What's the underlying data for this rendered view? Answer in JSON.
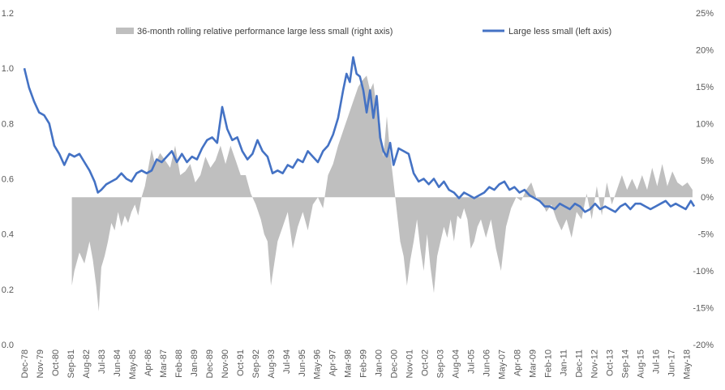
{
  "chart_data": {
    "type": "line",
    "title": "",
    "xlabel": "",
    "ylabel": "",
    "ylim": [
      0,
      1.2
    ],
    "y2lim": [
      -0.2,
      0.25
    ],
    "grid": false,
    "legend_position": "top",
    "colors": {
      "line": "#4472C4",
      "area": "#BFBFBF"
    },
    "left_ticks": [
      "0.0",
      "0.2",
      "0.4",
      "0.6",
      "0.8",
      "1.0",
      "1.2"
    ],
    "right_ticks": [
      "-20%",
      "-15%",
      "-10%",
      "-5%",
      "0%",
      "5%",
      "10%",
      "15%",
      "20%",
      "25%"
    ],
    "x_tick_labels": [
      "Dec-78",
      "Nov-79",
      "Oct-80",
      "Sep-81",
      "Aug-82",
      "Jul-83",
      "Jun-84",
      "May-85",
      "Apr-86",
      "Mar-87",
      "Feb-88",
      "Jan-89",
      "Dec-89",
      "Nov-90",
      "Oct-91",
      "Sep-92",
      "Aug-93",
      "Jul-94",
      "Jun-95",
      "May-96",
      "Apr-97",
      "Mar-98",
      "Feb-99",
      "Jan-00",
      "Dec-00",
      "Nov-01",
      "Oct-02",
      "Sep-03",
      "Aug-04",
      "Jul-05",
      "Jun-06",
      "May-07",
      "Apr-08",
      "Mar-09",
      "Feb-10",
      "Jan-11",
      "Dec-11",
      "Nov-12",
      "Oct-13",
      "Sep-14",
      "Aug-15",
      "Jul-16",
      "Jun-17",
      "May-18"
    ],
    "series": [
      {
        "name": "36-month rolling relative performance large less small (right axis)",
        "axis": "right",
        "kind": "area",
        "x": [
          1981.75,
          1981.9,
          1982.2,
          1982.5,
          1982.8,
          1983.0,
          1983.2,
          1983.35,
          1983.5,
          1983.7,
          1983.9,
          1984.1,
          1984.3,
          1984.5,
          1984.7,
          1984.9,
          1985.1,
          1985.3,
          1985.5,
          1985.7,
          1985.9,
          1986.1,
          1986.3,
          1986.5,
          1986.7,
          1987.0,
          1987.3,
          1987.6,
          1987.9,
          1988.2,
          1988.5,
          1988.8,
          1989.1,
          1989.4,
          1989.7,
          1990.0,
          1990.3,
          1990.6,
          1990.9,
          1991.2,
          1991.5,
          1991.8,
          1992.1,
          1992.4,
          1992.7,
          1993.0,
          1993.2,
          1993.4,
          1993.6,
          1993.8,
          1994.0,
          1994.3,
          1994.6,
          1994.9,
          1995.2,
          1995.5,
          1995.8,
          1996.1,
          1996.4,
          1996.7,
          1997.0,
          1997.3,
          1997.6,
          1997.9,
          1998.2,
          1998.5,
          1998.8,
          1999.1,
          1999.3,
          1999.5,
          1999.7,
          1999.9,
          2000.1,
          2000.3,
          2000.5,
          2000.7,
          2000.9,
          2001.1,
          2001.3,
          2001.5,
          2001.7,
          2001.9,
          2002.1,
          2002.3,
          2002.5,
          2002.7,
          2002.9,
          2003.1,
          2003.3,
          2003.5,
          2003.7,
          2003.9,
          2004.1,
          2004.3,
          2004.5,
          2004.7,
          2004.9,
          2005.1,
          2005.3,
          2005.5,
          2005.7,
          2005.9,
          2006.1,
          2006.4,
          2006.7,
          2007.0,
          2007.3,
          2007.6,
          2007.9,
          2008.2,
          2008.5,
          2008.8,
          2009.1,
          2009.4,
          2009.7,
          2010.0,
          2010.3,
          2010.6,
          2010.9,
          2011.2,
          2011.5,
          2011.8,
          2012.1,
          2012.4,
          2012.7,
          2013.0,
          2013.3,
          2013.6,
          2013.9,
          2014.2,
          2014.5,
          2014.8,
          2015.1,
          2015.4,
          2015.7,
          2016.0,
          2016.3,
          2016.6,
          2016.9,
          2017.2,
          2017.5,
          2017.8,
          2018.1,
          2018.4,
          2018.7
        ],
        "values": [
          -0.12,
          -0.1,
          -0.075,
          -0.09,
          -0.06,
          -0.085,
          -0.12,
          -0.155,
          -0.095,
          -0.08,
          -0.06,
          -0.035,
          -0.045,
          -0.02,
          -0.04,
          -0.025,
          -0.035,
          -0.02,
          -0.01,
          -0.025,
          0.0,
          0.015,
          0.04,
          0.065,
          0.045,
          0.06,
          0.05,
          0.04,
          0.07,
          0.03,
          0.035,
          0.045,
          0.02,
          0.03,
          0.055,
          0.04,
          0.05,
          0.07,
          0.045,
          0.07,
          0.05,
          0.03,
          0.03,
          0.005,
          -0.01,
          -0.03,
          -0.05,
          -0.06,
          -0.12,
          -0.09,
          -0.06,
          -0.04,
          -0.02,
          -0.07,
          -0.04,
          -0.02,
          -0.045,
          -0.01,
          0.0,
          -0.015,
          0.03,
          0.045,
          0.07,
          0.09,
          0.11,
          0.13,
          0.15,
          0.16,
          0.165,
          0.145,
          0.155,
          0.12,
          0.1,
          0.055,
          0.11,
          0.06,
          0.02,
          -0.02,
          -0.06,
          -0.08,
          -0.12,
          -0.085,
          -0.06,
          -0.03,
          -0.07,
          -0.1,
          -0.05,
          -0.095,
          -0.13,
          -0.08,
          -0.06,
          -0.04,
          -0.055,
          -0.03,
          -0.06,
          -0.025,
          -0.03,
          -0.015,
          -0.03,
          -0.07,
          -0.06,
          -0.04,
          -0.03,
          -0.055,
          -0.03,
          -0.07,
          -0.1,
          -0.04,
          -0.015,
          0.0,
          -0.005,
          0.01,
          0.02,
          0.0,
          -0.005,
          -0.02,
          -0.01,
          -0.03,
          -0.045,
          -0.03,
          -0.055,
          -0.02,
          -0.03,
          0.005,
          -0.03,
          0.015,
          -0.025,
          0.02,
          -0.01,
          0.01,
          0.03,
          0.01,
          0.025,
          0.01,
          0.03,
          0.01,
          0.04,
          0.015,
          0.045,
          0.015,
          0.035,
          0.02,
          0.015,
          0.02,
          0.01
        ]
      },
      {
        "name": "Large less small (left axis)",
        "axis": "left",
        "kind": "line",
        "x": [
          1978.92,
          1979.2,
          1979.5,
          1979.8,
          1980.1,
          1980.4,
          1980.7,
          1981.0,
          1981.3,
          1981.6,
          1981.9,
          1982.2,
          1982.5,
          1982.8,
          1983.1,
          1983.3,
          1983.5,
          1983.8,
          1984.1,
          1984.4,
          1984.7,
          1985.0,
          1985.3,
          1985.6,
          1985.9,
          1986.2,
          1986.5,
          1986.8,
          1987.1,
          1987.4,
          1987.7,
          1988.0,
          1988.3,
          1988.6,
          1988.9,
          1989.2,
          1989.5,
          1989.8,
          1990.1,
          1990.4,
          1990.7,
          1991.0,
          1991.3,
          1991.6,
          1991.9,
          1992.2,
          1992.5,
          1992.8,
          1993.1,
          1993.4,
          1993.7,
          1994.0,
          1994.3,
          1994.6,
          1994.9,
          1995.2,
          1995.5,
          1995.8,
          1996.1,
          1996.4,
          1996.7,
          1997.0,
          1997.3,
          1997.6,
          1997.9,
          1998.1,
          1998.3,
          1998.5,
          1998.7,
          1998.9,
          1999.1,
          1999.3,
          1999.5,
          1999.7,
          1999.9,
          2000.1,
          2000.3,
          2000.5,
          2000.7,
          2000.9,
          2001.2,
          2001.5,
          2001.8,
          2002.1,
          2002.4,
          2002.7,
          2003.0,
          2003.3,
          2003.6,
          2003.9,
          2004.2,
          2004.5,
          2004.8,
          2005.1,
          2005.4,
          2005.7,
          2006.0,
          2006.3,
          2006.6,
          2006.9,
          2007.2,
          2007.5,
          2007.8,
          2008.1,
          2008.4,
          2008.7,
          2009.0,
          2009.3,
          2009.6,
          2009.9,
          2010.2,
          2010.5,
          2010.8,
          2011.1,
          2011.4,
          2011.7,
          2012.0,
          2012.3,
          2012.6,
          2012.9,
          2013.2,
          2013.5,
          2013.8,
          2014.1,
          2014.4,
          2014.7,
          2015.0,
          2015.3,
          2015.6,
          2015.9,
          2016.2,
          2016.5,
          2016.8,
          2017.1,
          2017.4,
          2017.7,
          2018.0,
          2018.3,
          2018.6,
          2018.8
        ],
        "values": [
          1.0,
          0.93,
          0.88,
          0.84,
          0.83,
          0.8,
          0.72,
          0.69,
          0.65,
          0.69,
          0.68,
          0.69,
          0.66,
          0.63,
          0.59,
          0.55,
          0.56,
          0.58,
          0.59,
          0.6,
          0.62,
          0.6,
          0.59,
          0.62,
          0.63,
          0.62,
          0.63,
          0.67,
          0.66,
          0.68,
          0.7,
          0.66,
          0.69,
          0.66,
          0.68,
          0.67,
          0.71,
          0.74,
          0.75,
          0.73,
          0.86,
          0.78,
          0.74,
          0.75,
          0.7,
          0.67,
          0.69,
          0.74,
          0.7,
          0.68,
          0.62,
          0.63,
          0.62,
          0.65,
          0.64,
          0.67,
          0.66,
          0.7,
          0.68,
          0.66,
          0.7,
          0.72,
          0.76,
          0.82,
          0.92,
          0.98,
          0.95,
          1.04,
          0.98,
          0.97,
          0.92,
          0.84,
          0.92,
          0.82,
          0.9,
          0.75,
          0.7,
          0.68,
          0.73,
          0.65,
          0.71,
          0.7,
          0.69,
          0.62,
          0.59,
          0.6,
          0.58,
          0.6,
          0.57,
          0.59,
          0.56,
          0.55,
          0.53,
          0.55,
          0.54,
          0.53,
          0.54,
          0.55,
          0.57,
          0.56,
          0.58,
          0.59,
          0.56,
          0.57,
          0.55,
          0.56,
          0.54,
          0.53,
          0.52,
          0.5,
          0.5,
          0.49,
          0.51,
          0.5,
          0.49,
          0.51,
          0.5,
          0.48,
          0.49,
          0.51,
          0.49,
          0.5,
          0.49,
          0.48,
          0.5,
          0.51,
          0.49,
          0.51,
          0.51,
          0.5,
          0.49,
          0.5,
          0.51,
          0.52,
          0.5,
          0.51,
          0.5,
          0.49,
          0.52,
          0.5
        ]
      }
    ]
  }
}
